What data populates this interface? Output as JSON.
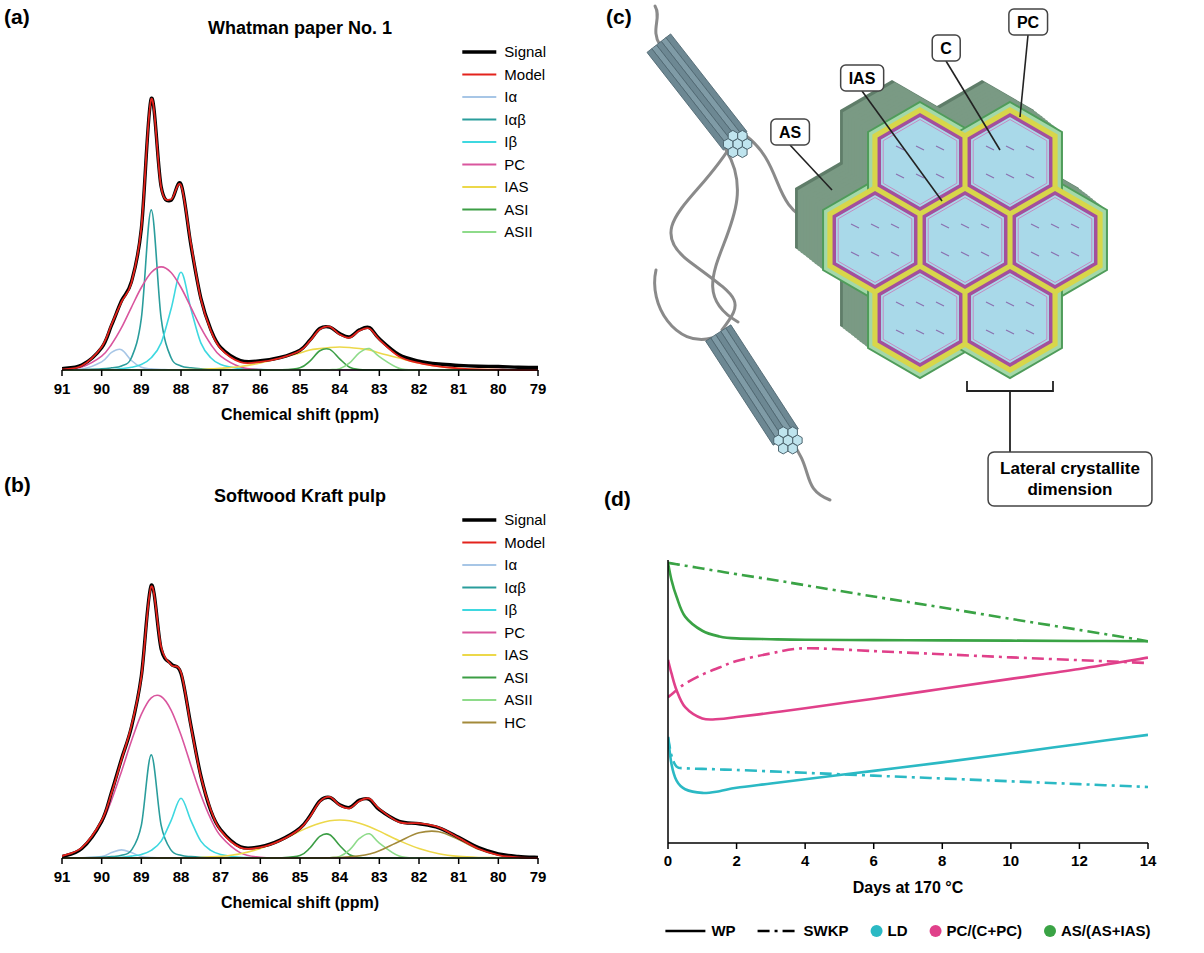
{
  "chart_data": [
    {
      "type": "line",
      "panel_label": "(a)",
      "title": "Whatman paper No. 1",
      "x_label": "Chemical shift (ppm)",
      "x": [
        91,
        90.5,
        90,
        89.75,
        89.5,
        89.25,
        89,
        88.75,
        88.5,
        88.25,
        88,
        87.75,
        87.5,
        87.25,
        87,
        86.5,
        86,
        85.5,
        85,
        84.75,
        84.5,
        84.25,
        84,
        83.75,
        83.5,
        83.25,
        83,
        82.5,
        82,
        81.5,
        81,
        80.5,
        80,
        79.5,
        79
      ],
      "xlim": [
        91,
        79
      ],
      "xticks": [
        91,
        90,
        89,
        88,
        87,
        86,
        85,
        84,
        83,
        82,
        81,
        80,
        79
      ],
      "ylim": [
        0,
        105
      ],
      "tick_labels": "x",
      "legend": "upper right",
      "series": [
        {
          "name": "Signal",
          "color": "#000000",
          "values": [
            0.5,
            1.8,
            8.2,
            16.5,
            25.5,
            32.5,
            52,
            100,
            67.5,
            62.5,
            68.5,
            46,
            26.5,
            15,
            8.3,
            3.5,
            3.4,
            4.6,
            7.3,
            11,
            15.3,
            15.8,
            13.4,
            12.2,
            14.8,
            15.6,
            11.5,
            5.6,
            3.3,
            2.2,
            1.7,
            1.4,
            1.3,
            1,
            0.9
          ]
        },
        {
          "name": "Model",
          "color": "#e3231c",
          "values": [
            0.2,
            1.6,
            8.5,
            16.8,
            25.1,
            32.1,
            52.4,
            99.8,
            67.2,
            62.9,
            68,
            46.6,
            26.2,
            14.6,
            7.9,
            2.9,
            3,
            4.4,
            7.1,
            10.7,
            15,
            16,
            13.1,
            11.9,
            14.5,
            15.3,
            11.2,
            5,
            2.6,
            1.3,
            0.6,
            0.2,
            0.1,
            0,
            0
          ]
        },
        {
          "name": "Iα",
          "color": "#a7c6e6",
          "values": [
            0,
            0.3,
            3,
            6.5,
            7.5,
            3.5,
            1,
            0.4,
            0.2,
            0,
            0,
            0,
            0,
            0,
            0,
            0,
            0,
            0,
            0,
            0,
            0,
            0,
            0,
            0,
            0,
            0,
            0,
            0,
            0,
            0,
            0,
            0,
            0,
            0,
            0
          ]
        },
        {
          "name": "Iαβ",
          "color": "#2a9d9c",
          "values": [
            0,
            0.15,
            0.4,
            0.8,
            1.5,
            4.5,
            19,
            59,
            19,
            4.5,
            1.5,
            0.8,
            0.4,
            0.2,
            0.15,
            0,
            0,
            0,
            0,
            0,
            0,
            0,
            0,
            0,
            0,
            0,
            0,
            0,
            0,
            0,
            0,
            0,
            0,
            0,
            0
          ]
        },
        {
          "name": "Iβ",
          "color": "#3ed8e0",
          "values": [
            0,
            0,
            0,
            0,
            0.5,
            1,
            2,
            4.5,
            10,
            22.5,
            36,
            22.5,
            10,
            4.5,
            2,
            0.5,
            0.2,
            0,
            0,
            0,
            0,
            0,
            0,
            0,
            0,
            0,
            0,
            0,
            0,
            0,
            0,
            0,
            0,
            0,
            0
          ]
        },
        {
          "name": "PC",
          "color": "#d9569e",
          "values": [
            0.15,
            1.1,
            5.1,
            9.5,
            15.6,
            23.1,
            30.4,
            35.9,
            38,
            35.9,
            30.4,
            23.1,
            15.6,
            9.5,
            5.1,
            1.1,
            0.15,
            0,
            0,
            0,
            0,
            0,
            0,
            0,
            0,
            0,
            0,
            0,
            0,
            0,
            0,
            0,
            0,
            0,
            0
          ]
        },
        {
          "name": "IAS",
          "color": "#ecd84a",
          "values": [
            0,
            0,
            0,
            0,
            0,
            0,
            0,
            0,
            0,
            0,
            0.1,
            0.15,
            0.2,
            0.4,
            0.6,
            1.3,
            2.6,
            4.4,
            6.3,
            7.4,
            7.9,
            8.3,
            8.5,
            8.3,
            7.9,
            7.4,
            6.3,
            4.4,
            2.6,
            1.3,
            0.6,
            0.2,
            0.1,
            0,
            0
          ]
        },
        {
          "name": "ASI",
          "color": "#3c9e45",
          "values": [
            0,
            0,
            0,
            0,
            0,
            0,
            0,
            0,
            0,
            0,
            0,
            0,
            0,
            0,
            0,
            0,
            0,
            0,
            0.8,
            3.3,
            7.1,
            7.6,
            4.1,
            1,
            0.15,
            0,
            0,
            0,
            0,
            0,
            0,
            0,
            0,
            0,
            0
          ]
        },
        {
          "name": "ASII",
          "color": "#8edb8a",
          "values": [
            0,
            0,
            0,
            0,
            0,
            0,
            0,
            0,
            0,
            0,
            0,
            0,
            0,
            0,
            0,
            0,
            0,
            0,
            0,
            0,
            0,
            0.1,
            0.5,
            2.6,
            6.4,
            7.9,
            4.9,
            0.6,
            0,
            0,
            0,
            0,
            0,
            0,
            0
          ]
        }
      ]
    },
    {
      "type": "line",
      "panel_label": "(b)",
      "title": "Softwood Kraft pulp",
      "x_label": "Chemical shift (ppm)",
      "x": [
        91,
        90.5,
        90,
        89.75,
        89.5,
        89.25,
        89,
        88.75,
        88.5,
        88.25,
        88,
        87.75,
        87.5,
        87.25,
        87,
        86.5,
        86,
        85.5,
        85,
        84.75,
        84.5,
        84.25,
        84,
        83.75,
        83.5,
        83.25,
        83,
        82.5,
        82,
        81.5,
        81,
        80.5,
        80,
        79.5,
        79
      ],
      "xlim": [
        91,
        79
      ],
      "xticks": [
        91,
        90,
        89,
        88,
        87,
        86,
        85,
        84,
        83,
        82,
        81,
        80,
        79
      ],
      "ylim": [
        0,
        105
      ],
      "tick_labels": "x",
      "legend": "upper right",
      "series": [
        {
          "name": "Signal",
          "color": "#000000",
          "values": [
            0.5,
            3.5,
            13.5,
            24.3,
            36.5,
            48.2,
            67,
            100.5,
            77,
            71.5,
            68,
            48.8,
            30.3,
            17.5,
            10.4,
            4.1,
            4.2,
            6.6,
            11,
            15.5,
            21,
            22.3,
            19.6,
            18.6,
            21.3,
            21.6,
            17.8,
            13.5,
            12.6,
            11.1,
            7.6,
            3.8,
            1.5,
            0.6,
            0.2
          ]
        },
        {
          "name": "Model",
          "color": "#e3231c",
          "values": [
            0.7,
            3.8,
            13.8,
            24,
            36.2,
            48.7,
            66.7,
            100,
            77.7,
            71.2,
            68.4,
            48.5,
            30,
            17.8,
            10.1,
            3.8,
            3.9,
            6.4,
            10.8,
            15.2,
            20.8,
            22.5,
            19.4,
            18.3,
            21,
            21.9,
            18.1,
            13.2,
            12.8,
            11.3,
            7.4,
            3.4,
            1.1,
            0.2,
            0
          ]
        },
        {
          "name": "Iα",
          "color": "#a7c6e6",
          "values": [
            0,
            0.1,
            0.5,
            2,
            3,
            2,
            0.5,
            0.2,
            0,
            0,
            0,
            0,
            0,
            0,
            0,
            0,
            0,
            0,
            0,
            0,
            0,
            0,
            0,
            0,
            0,
            0,
            0,
            0,
            0,
            0,
            0,
            0,
            0,
            0,
            0
          ]
        },
        {
          "name": "Iαβ",
          "color": "#2a9d9c",
          "values": [
            0,
            0.1,
            0.25,
            0.5,
            1,
            2.9,
            12,
            38,
            12,
            2.9,
            1,
            0.5,
            0.25,
            0.15,
            0.1,
            0,
            0,
            0,
            0,
            0,
            0,
            0,
            0,
            0,
            0,
            0,
            0,
            0,
            0,
            0,
            0,
            0,
            0,
            0,
            0
          ]
        },
        {
          "name": "Iβ",
          "color": "#3ed8e0",
          "values": [
            0,
            0,
            0,
            0.15,
            0.3,
            0.7,
            1.3,
            2.8,
            6.2,
            13.8,
            22,
            13.8,
            6.2,
            2.8,
            1.3,
            0.3,
            0.1,
            0,
            0,
            0,
            0,
            0,
            0,
            0,
            0,
            0,
            0,
            0,
            0,
            0,
            0,
            0,
            0,
            0,
            0
          ]
        },
        {
          "name": "PC",
          "color": "#d9569e",
          "values": [
            0.7,
            3.6,
            13,
            21.4,
            31.9,
            43.1,
            52.9,
            59,
            59.5,
            54.5,
            45.3,
            34.1,
            23.3,
            14.4,
            8.1,
            1.9,
            0.3,
            0,
            0,
            0,
            0,
            0,
            0,
            0,
            0,
            0,
            0,
            0,
            0,
            0,
            0,
            0,
            0,
            0,
            0
          ]
        },
        {
          "name": "IAS",
          "color": "#ecd84a",
          "values": [
            0,
            0,
            0,
            0,
            0,
            0,
            0,
            0,
            0,
            0,
            0.1,
            0.1,
            0.2,
            0.4,
            0.6,
            1.6,
            3.5,
            6.4,
            9.9,
            11.5,
            12.8,
            13.7,
            14,
            13.7,
            12.8,
            11.5,
            9.9,
            6.4,
            3.5,
            1.6,
            0.6,
            0.2,
            0.1,
            0,
            0
          ]
        },
        {
          "name": "ASI",
          "color": "#3c9e45",
          "values": [
            0,
            0,
            0,
            0,
            0,
            0,
            0,
            0,
            0,
            0,
            0,
            0,
            0,
            0,
            0,
            0,
            0,
            0,
            0.9,
            3.7,
            8,
            8.6,
            4.6,
            1.2,
            0.2,
            0,
            0,
            0,
            0,
            0,
            0,
            0,
            0,
            0,
            0
          ]
        },
        {
          "name": "ASII",
          "color": "#8edb8a",
          "values": [
            0,
            0,
            0,
            0,
            0,
            0,
            0,
            0,
            0,
            0,
            0,
            0,
            0,
            0,
            0,
            0,
            0,
            0,
            0,
            0,
            0,
            0.1,
            0.6,
            3,
            7.2,
            8.9,
            5.5,
            0.7,
            0,
            0,
            0,
            0,
            0,
            0,
            0
          ]
        },
        {
          "name": "HC",
          "color": "#a38a3a",
          "values": [
            0,
            0,
            0,
            0,
            0,
            0,
            0,
            0,
            0,
            0,
            0,
            0,
            0,
            0,
            0,
            0,
            0,
            0,
            0,
            0,
            0,
            0.1,
            0.2,
            0.4,
            0.8,
            1.5,
            2.7,
            6.1,
            9.3,
            9.7,
            6.8,
            3.2,
            1,
            0.2,
            0
          ]
        }
      ]
    },
    {
      "type": "line",
      "panel_label": "(d)",
      "x_label": "Days at 170 °C",
      "x": [
        0,
        0.1,
        0.25,
        0.5,
        1,
        1.5,
        2,
        3,
        4,
        6,
        8,
        10,
        12,
        14
      ],
      "xlim": [
        0,
        14
      ],
      "xticks": [
        0,
        2,
        4,
        6,
        8,
        10,
        12,
        14
      ],
      "ylim": [
        0,
        100
      ],
      "tick_labels": "x",
      "legend": "bottom",
      "legend_line_styles": [
        {
          "name": "WP",
          "line_style": "solid"
        },
        {
          "name": "SWKP",
          "line_style": "dashdot"
        }
      ],
      "series": [
        {
          "name": "LD",
          "color": "#2bb9c4",
          "line_style": "solid",
          "values": [
            37.5,
            28,
            22,
            19,
            17.7,
            18.3,
            19.5,
            21,
            22.5,
            25.5,
            28.5,
            31.7,
            35,
            38.2
          ]
        },
        {
          "name": "LD",
          "color": "#2bb9c4",
          "line_style": "dashdot",
          "values": [
            37.5,
            31,
            27,
            26.4,
            26.2,
            26,
            25.8,
            25.3,
            24.8,
            23.8,
            22.8,
            21.8,
            20.8,
            19.8
          ]
        },
        {
          "name": "PC/(C+PC)",
          "color": "#e0408a",
          "line_style": "solid",
          "values": [
            64.7,
            60,
            54,
            48,
            44,
            43.8,
            44.5,
            46,
            47.6,
            51,
            54.5,
            58,
            61.5,
            65.5
          ]
        },
        {
          "name": "PC/(C+PC)",
          "color": "#e0408a",
          "line_style": "dashdot",
          "values": [
            51.5,
            52.5,
            54,
            56.3,
            59.5,
            62,
            64.3,
            67,
            68.8,
            67.8,
            66.7,
            65.6,
            64.6,
            63.6
          ]
        },
        {
          "name": "AS/(AS+IAS)",
          "color": "#3aa345",
          "line_style": "solid",
          "values": [
            99,
            93,
            87,
            80,
            75,
            73,
            72.3,
            72,
            71.8,
            71.7,
            71.6,
            71.5,
            71.4,
            71.3
          ]
        },
        {
          "name": "AS/(AS+IAS)",
          "color": "#3aa345",
          "line_style": "dashdot",
          "values": [
            99,
            98.8,
            98.5,
            98,
            97,
            96,
            95,
            93.1,
            91.1,
            87.1,
            83.2,
            79.2,
            75.3,
            71.3
          ]
        }
      ]
    }
  ],
  "diagram": {
    "panel_label": "(c)",
    "labels": [
      "AS",
      "IAS",
      "C",
      "PC"
    ],
    "caption": "Lateral crystallite dimension"
  }
}
